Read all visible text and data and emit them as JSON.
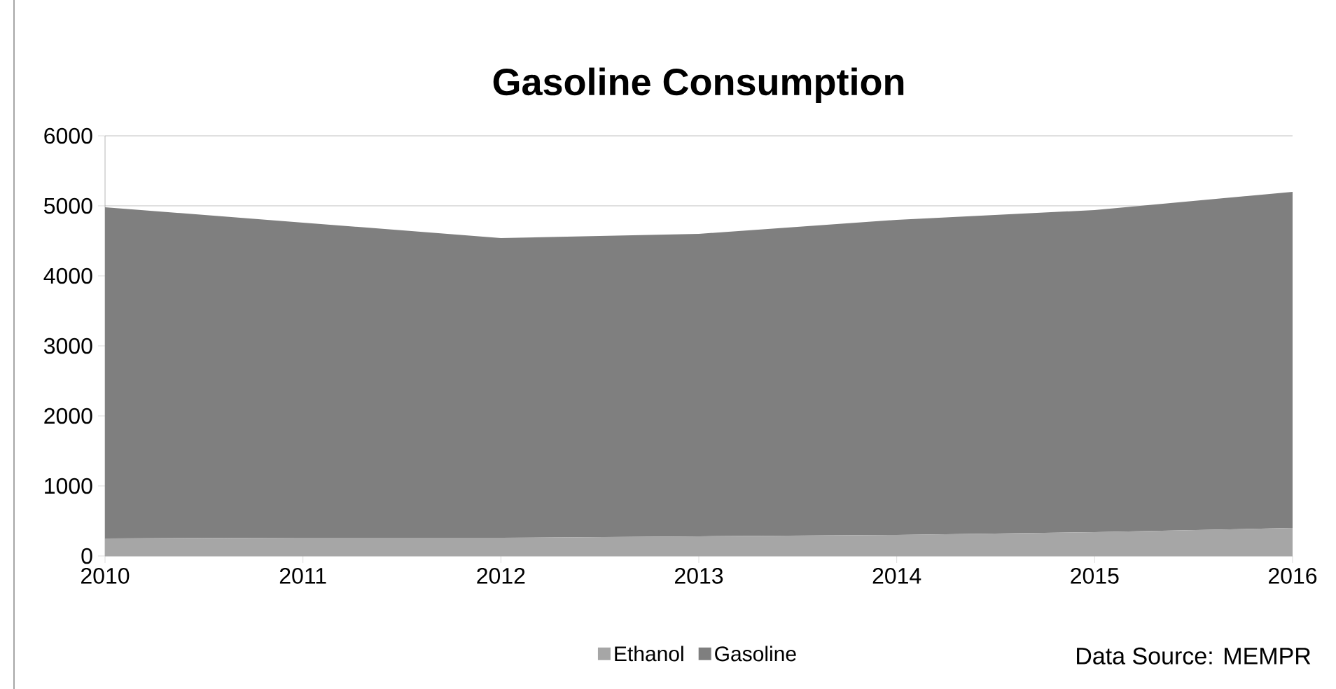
{
  "chart_data": {
    "type": "area",
    "stacked": true,
    "title": "Gasoline Consumption",
    "categories": [
      "2010",
      "2011",
      "2012",
      "2013",
      "2014",
      "2015",
      "2016"
    ],
    "series": [
      {
        "name": "Ethanol",
        "color": "#a6a6a6",
        "values": [
          250,
          260,
          260,
          280,
          300,
          340,
          400
        ]
      },
      {
        "name": "Gasoline",
        "color": "#7f7f7f",
        "values": [
          4730,
          4500,
          4280,
          4320,
          4500,
          4600,
          4800
        ]
      }
    ],
    "ylim": [
      0,
      6000
    ],
    "yticks": [
      0,
      1000,
      2000,
      3000,
      4000,
      5000,
      6000
    ],
    "grid": "y",
    "legend": "bottom",
    "annotations": [
      "Data Source: MEMPR"
    ]
  }
}
